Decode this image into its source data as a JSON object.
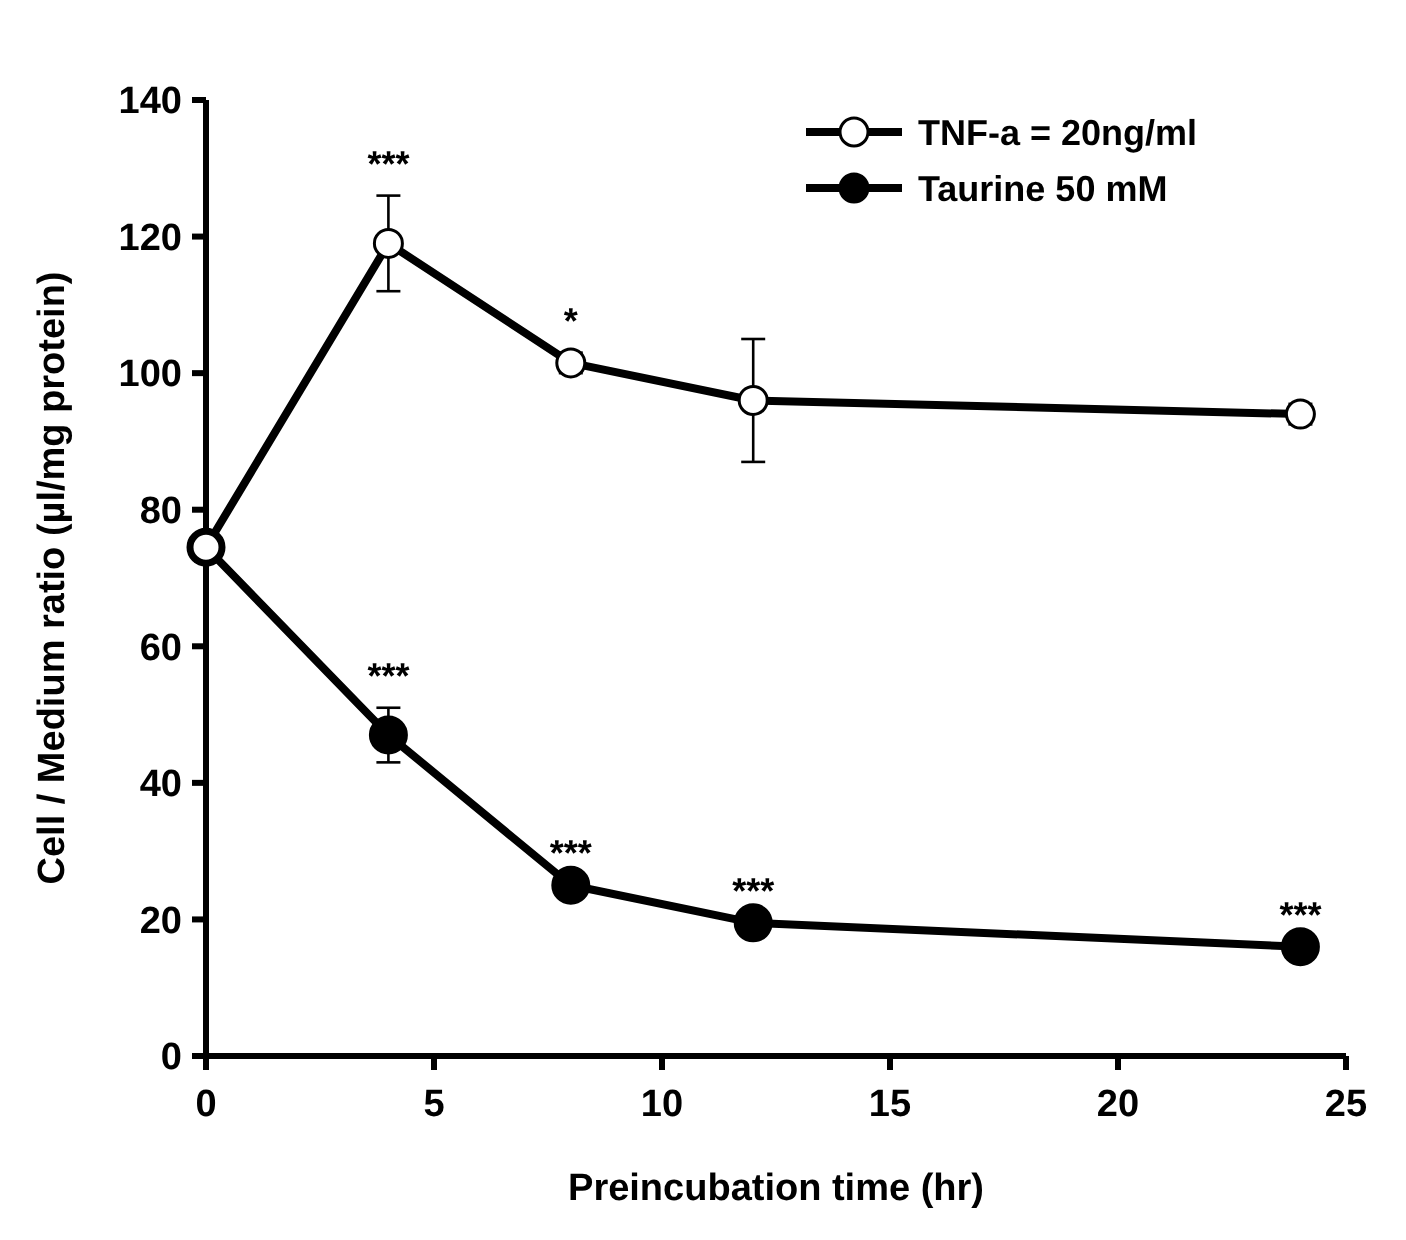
{
  "chart_data": {
    "type": "line",
    "xlabel": "Preincubation time (hr)",
    "ylabel": "Cell / Medium ratio (µl/mg protein)",
    "xlim": [
      0,
      25
    ],
    "xticks": [
      0,
      5,
      10,
      15,
      20,
      25
    ],
    "ylim": [
      0,
      140
    ],
    "yticks": [
      0,
      20,
      40,
      60,
      80,
      100,
      120,
      140
    ],
    "grid": false,
    "legend": "top right",
    "marker": "circle",
    "line_style": "solid",
    "series": [
      {
        "name": "TNF-a = 20ng/ml",
        "color": "#ffffff",
        "x": [
          0,
          4,
          8,
          12,
          24
        ],
        "values": [
          74.5,
          119,
          101.5,
          96,
          94
        ],
        "errors": [
          2,
          7,
          1.5,
          9,
          1.5
        ]
      },
      {
        "name": "Taurine 50 mM",
        "color": "#000000",
        "x": [
          0,
          4,
          8,
          12,
          24
        ],
        "values": [
          74.5,
          47,
          25,
          19.5,
          16
        ],
        "errors": [
          2,
          4,
          null,
          null,
          null
        ]
      }
    ],
    "annotations": [
      {
        "text": "***",
        "x": 4,
        "y": 126
      },
      {
        "text": "*",
        "x": 8,
        "y": 103
      },
      {
        "text": "***",
        "x": 4,
        "y": 51
      },
      {
        "text": "***",
        "x": 8,
        "y": 25
      },
      {
        "text": "***",
        "x": 12,
        "y": 19.5
      },
      {
        "text": "***",
        "x": 24,
        "y": 16
      }
    ]
  }
}
